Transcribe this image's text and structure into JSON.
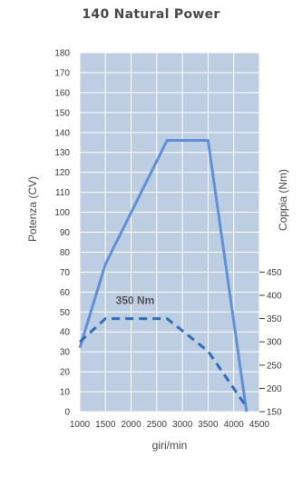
{
  "chart_data": {
    "type": "line",
    "title": "140 Natural Power",
    "xlabel": "giri/min",
    "ylabel_left": "Potenza (CV)",
    "ylabel_right": "Coppia (Nm)",
    "x_ticks": [
      1000,
      1500,
      2000,
      2500,
      3000,
      3500,
      4000,
      4500
    ],
    "y_left_ticks": [
      0,
      10,
      20,
      30,
      40,
      50,
      60,
      70,
      80,
      90,
      100,
      110,
      120,
      130,
      140,
      150,
      160,
      170,
      180
    ],
    "y_right_ticks": [
      150,
      200,
      250,
      300,
      350,
      400,
      450
    ],
    "xlim": [
      1000,
      4500
    ],
    "ylim_left": [
      0,
      180
    ],
    "ylim_right": [
      150,
      450
    ],
    "grid": true,
    "series": [
      {
        "axis": "left",
        "style": "solid",
        "x": [
          1000,
          1500,
          2700,
          3500,
          4250
        ],
        "y": [
          32,
          74,
          136,
          136,
          0
        ]
      },
      {
        "axis": "right",
        "style": "dashed",
        "x": [
          1000,
          1500,
          2700,
          3500,
          4250
        ],
        "y": [
          300,
          350,
          350,
          280,
          160
        ]
      }
    ],
    "annotations": [
      {
        "text": "350 Nm"
      }
    ],
    "colors": {
      "plot_background": "#bdcde2",
      "grid": "#ffffff",
      "power_line": "#5f90da",
      "torque_line": "#2f6fbf"
    }
  }
}
